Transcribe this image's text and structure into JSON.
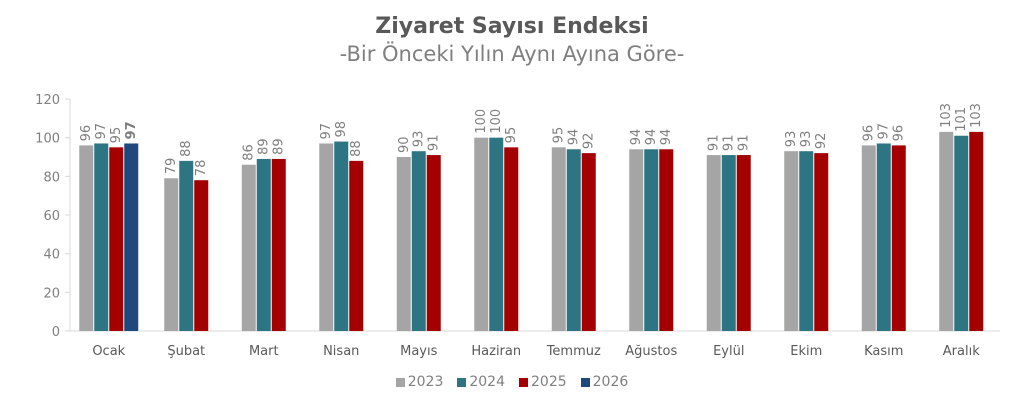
{
  "chart_data": {
    "type": "bar",
    "title": "Ziyaret Sayısı Endeksi",
    "subtitle": "-Bir Önceki Yılın Aynı Ayına Göre-",
    "xlabel": "",
    "ylabel": "",
    "ylim": [
      0,
      120
    ],
    "yticks": [
      0,
      20,
      40,
      60,
      80,
      100,
      120
    ],
    "grid": false,
    "legend_position": "bottom",
    "categories": [
      "Ocak",
      "Şubat",
      "Mart",
      "Nisan",
      "Mayıs",
      "Haziran",
      "Temmuz",
      "Ağustos",
      "Eylül",
      "Ekim",
      "Kasım",
      "Aralık"
    ],
    "series": [
      {
        "name": "2023",
        "color": "#a5a5a5",
        "values": [
          96,
          79,
          86,
          97,
          90,
          100,
          95,
          94,
          91,
          93,
          96,
          103
        ]
      },
      {
        "name": "2024",
        "color": "#2e7583",
        "values": [
          97,
          88,
          89,
          98,
          93,
          100,
          94,
          94,
          91,
          93,
          97,
          101
        ]
      },
      {
        "name": "2025",
        "color": "#a50000",
        "values": [
          95,
          78,
          89,
          88,
          91,
          95,
          92,
          94,
          91,
          92,
          96,
          103
        ]
      },
      {
        "name": "2026",
        "color": "#1f497d",
        "values": [
          97,
          null,
          null,
          null,
          null,
          null,
          null,
          null,
          null,
          null,
          null,
          null
        ]
      }
    ]
  },
  "header": {
    "title": "Ziyaret Sayısı Endeksi",
    "subtitle": "-Bir Önceki Yılın Aynı Ayına Göre-"
  },
  "legend": [
    {
      "label": "2023",
      "color": "#a5a5a5"
    },
    {
      "label": "2024",
      "color": "#2e7583"
    },
    {
      "label": "2025",
      "color": "#a50000"
    },
    {
      "label": "2026",
      "color": "#1f497d"
    }
  ]
}
